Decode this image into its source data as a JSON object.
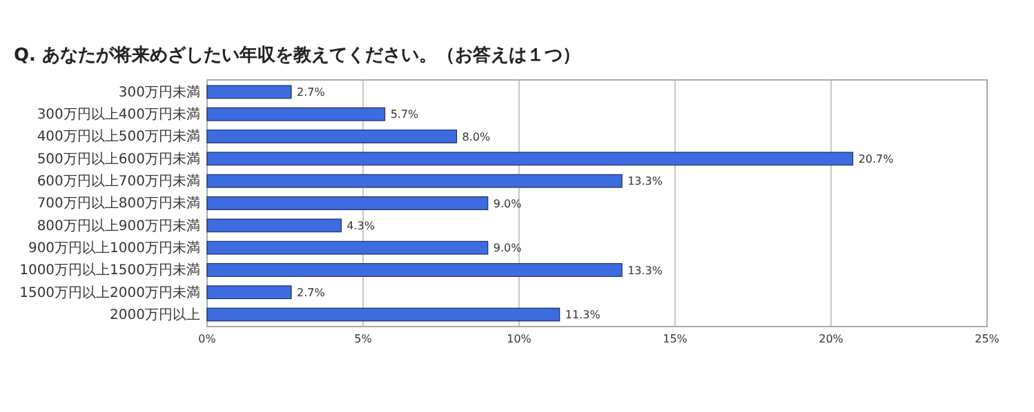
{
  "chart_data": {
    "type": "bar",
    "orientation": "horizontal",
    "title": "Q. あなたが将来めざしたい年収を教えてください。（お答えは１つ）",
    "categories": [
      "300万円未満",
      "300万円以上400万円未満",
      "400万円以上500万円未満",
      "500万円以上600万円未満",
      "600万円以上700万円未満",
      "700万円以上800万円未満",
      "800万円以上900万円未満",
      "900万円以上1000万円未満",
      "1000万円以上1500万円未満",
      "1500万円以上2000万円未満",
      "2000万円以上"
    ],
    "values": [
      2.7,
      5.7,
      8.0,
      20.7,
      13.3,
      9.0,
      4.3,
      9.0,
      13.3,
      2.7,
      11.3
    ],
    "value_labels": [
      "2.7%",
      "5.7%",
      "8.0%",
      "20.7%",
      "13.3%",
      "9.0%",
      "4.3%",
      "9.0%",
      "13.3%",
      "2.7%",
      "11.3%"
    ],
    "color": "#3d6be0",
    "xlim": [
      0,
      25
    ],
    "xticks": [
      {
        "value": 0,
        "label": "0%"
      },
      {
        "value": 5,
        "label": "5%"
      },
      {
        "value": 10,
        "label": "10%"
      },
      {
        "value": 15,
        "label": "15%"
      },
      {
        "value": 20,
        "label": "20%"
      },
      {
        "value": 25,
        "label": "25%"
      }
    ],
    "grid": "x"
  }
}
